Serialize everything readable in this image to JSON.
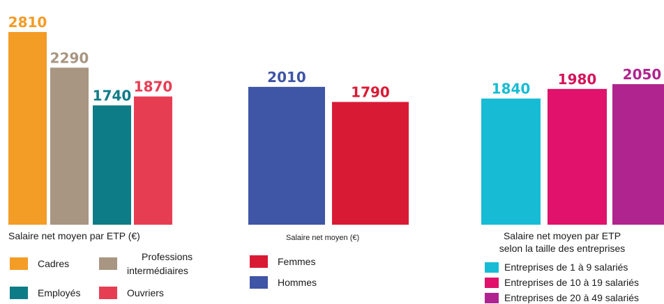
{
  "chart_data": [
    {
      "type": "bar",
      "xlabel": "Salaire net moyen par ETP (€)",
      "categories": [
        "Cadres",
        "Professions intermédiaires",
        "Employés",
        "Ouvriers"
      ],
      "values": [
        2810,
        2290,
        1740,
        1870
      ],
      "colors": [
        "#F39C26",
        "#A89682",
        "#0E7C86",
        "#E73D53"
      ],
      "label_colors": [
        "#F39C26",
        "#A89682",
        "#0E7C86",
        "#E73D53"
      ],
      "legend_position": "bottom",
      "ylim": [
        0,
        2810
      ]
    },
    {
      "type": "bar",
      "xlabel": "Salaire net moyen (€)",
      "categories": [
        "Hommes",
        "Femmes"
      ],
      "values": [
        2010,
        1790
      ],
      "colors": [
        "#3F55A5",
        "#D91A35"
      ],
      "label_colors": [
        "#3F55A5",
        "#D91A35"
      ],
      "legend_position": "bottom",
      "ylim": [
        0,
        2810
      ]
    },
    {
      "type": "bar",
      "xlabel": "Salaire net moyen par ETP\nselon la taille des entreprises",
      "categories": [
        "Entreprises de 1 à 9 salariés",
        "Entreprises de 10 à 19 salariés",
        "Entreprises de 20 à 49 salariés"
      ],
      "values": [
        1840,
        1980,
        2050
      ],
      "colors": [
        "#17BCD4",
        "#E0126B",
        "#B0248F"
      ],
      "label_colors": [
        "#17BCD4",
        "#D4145A",
        "#B0248F"
      ],
      "legend_position": "bottom",
      "ylim": [
        0,
        2810
      ]
    }
  ]
}
